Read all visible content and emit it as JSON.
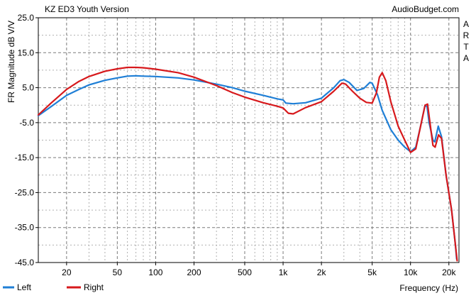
{
  "chart_data": {
    "type": "line",
    "title": "KZ ED3 Youth Version",
    "source": "AudioBudget.com",
    "side_label": [
      "A",
      "R",
      "T",
      "A"
    ],
    "xlabel": "Frequency (Hz)",
    "ylabel": "FR Magnitude dB V/V",
    "xscale": "log",
    "xlim": [
      12,
      24000
    ],
    "ylim": [
      -45,
      25
    ],
    "x_ticks": [
      {
        "value": 20,
        "label": "20"
      },
      {
        "value": 50,
        "label": "50"
      },
      {
        "value": 100,
        "label": "100"
      },
      {
        "value": 200,
        "label": "200"
      },
      {
        "value": 500,
        "label": "500"
      },
      {
        "value": 1000,
        "label": "1k"
      },
      {
        "value": 2000,
        "label": "2k"
      },
      {
        "value": 5000,
        "label": "5k"
      },
      {
        "value": 10000,
        "label": "10k"
      },
      {
        "value": 20000,
        "label": "20k"
      }
    ],
    "y_ticks": [
      25.0,
      15.0,
      5.0,
      -5.0,
      -15.0,
      -25.0,
      -35.0,
      -45.0
    ],
    "y_tick_labels": [
      "25.0",
      "15.0",
      "5.0",
      "-5.0",
      "-15.0",
      "-25.0",
      "-35.0",
      "-45.0"
    ],
    "grid": true,
    "legend": "bottom-left",
    "series": [
      {
        "name": "Left",
        "color": "#1f7fd6",
        "points": [
          [
            12,
            -3.0
          ],
          [
            15,
            -0.5
          ],
          [
            20,
            2.8
          ],
          [
            25,
            4.5
          ],
          [
            30,
            5.8
          ],
          [
            40,
            7.1
          ],
          [
            50,
            7.8
          ],
          [
            60,
            8.3
          ],
          [
            70,
            8.4
          ],
          [
            80,
            8.3
          ],
          [
            100,
            8.2
          ],
          [
            150,
            7.8
          ],
          [
            200,
            7.2
          ],
          [
            300,
            6.0
          ],
          [
            400,
            5.0
          ],
          [
            500,
            4.0
          ],
          [
            700,
            2.8
          ],
          [
            900,
            1.8
          ],
          [
            1000,
            1.5
          ],
          [
            1050,
            0.6
          ],
          [
            1200,
            0.4
          ],
          [
            1500,
            0.7
          ],
          [
            2000,
            2.0
          ],
          [
            2500,
            5.0
          ],
          [
            2800,
            7.0
          ],
          [
            3000,
            7.3
          ],
          [
            3300,
            6.5
          ],
          [
            3800,
            4.2
          ],
          [
            4300,
            4.8
          ],
          [
            4800,
            6.5
          ],
          [
            5000,
            6.3
          ],
          [
            5500,
            3.0
          ],
          [
            6000,
            -1.5
          ],
          [
            7000,
            -7.0
          ],
          [
            8000,
            -10.0
          ],
          [
            9000,
            -12.0
          ],
          [
            10000,
            -13.3
          ],
          [
            11000,
            -12.0
          ],
          [
            12000,
            -6.0
          ],
          [
            13000,
            0.0
          ],
          [
            13500,
            -0.5
          ],
          [
            14000,
            -5.0
          ],
          [
            15000,
            -10.0
          ],
          [
            15500,
            -10.5
          ],
          [
            16500,
            -6.0
          ],
          [
            17500,
            -9.0
          ],
          [
            19000,
            -20.0
          ],
          [
            21000,
            -30.0
          ],
          [
            22500,
            -40.0
          ],
          [
            23000,
            -44.0
          ]
        ]
      },
      {
        "name": "Right",
        "color": "#d7191c",
        "points": [
          [
            12,
            -2.8
          ],
          [
            15,
            0.5
          ],
          [
            20,
            4.5
          ],
          [
            25,
            6.8
          ],
          [
            30,
            8.2
          ],
          [
            40,
            9.7
          ],
          [
            50,
            10.4
          ],
          [
            60,
            10.8
          ],
          [
            70,
            10.8
          ],
          [
            80,
            10.7
          ],
          [
            100,
            10.3
          ],
          [
            150,
            9.3
          ],
          [
            200,
            8.0
          ],
          [
            300,
            5.6
          ],
          [
            400,
            3.6
          ],
          [
            500,
            2.3
          ],
          [
            700,
            0.7
          ],
          [
            900,
            -0.3
          ],
          [
            1000,
            -0.8
          ],
          [
            1100,
            -2.3
          ],
          [
            1200,
            -2.5
          ],
          [
            1500,
            -0.7
          ],
          [
            2000,
            1.0
          ],
          [
            2500,
            4.0
          ],
          [
            2900,
            6.3
          ],
          [
            3100,
            6.0
          ],
          [
            3500,
            4.0
          ],
          [
            4000,
            2.0
          ],
          [
            4500,
            0.8
          ],
          [
            5000,
            0.6
          ],
          [
            5400,
            3.5
          ],
          [
            5700,
            8.0
          ],
          [
            6000,
            9.3
          ],
          [
            6400,
            7.0
          ],
          [
            7000,
            1.0
          ],
          [
            8000,
            -6.0
          ],
          [
            9000,
            -10.0
          ],
          [
            10000,
            -13.5
          ],
          [
            11000,
            -12.5
          ],
          [
            12000,
            -6.0
          ],
          [
            13000,
            0.0
          ],
          [
            13600,
            0.3
          ],
          [
            14200,
            -5.0
          ],
          [
            15000,
            -11.5
          ],
          [
            15600,
            -12.0
          ],
          [
            16600,
            -8.5
          ],
          [
            17500,
            -9.5
          ],
          [
            19000,
            -20.0
          ],
          [
            21000,
            -30.0
          ],
          [
            22500,
            -40.0
          ],
          [
            23200,
            -44.5
          ]
        ]
      }
    ]
  }
}
